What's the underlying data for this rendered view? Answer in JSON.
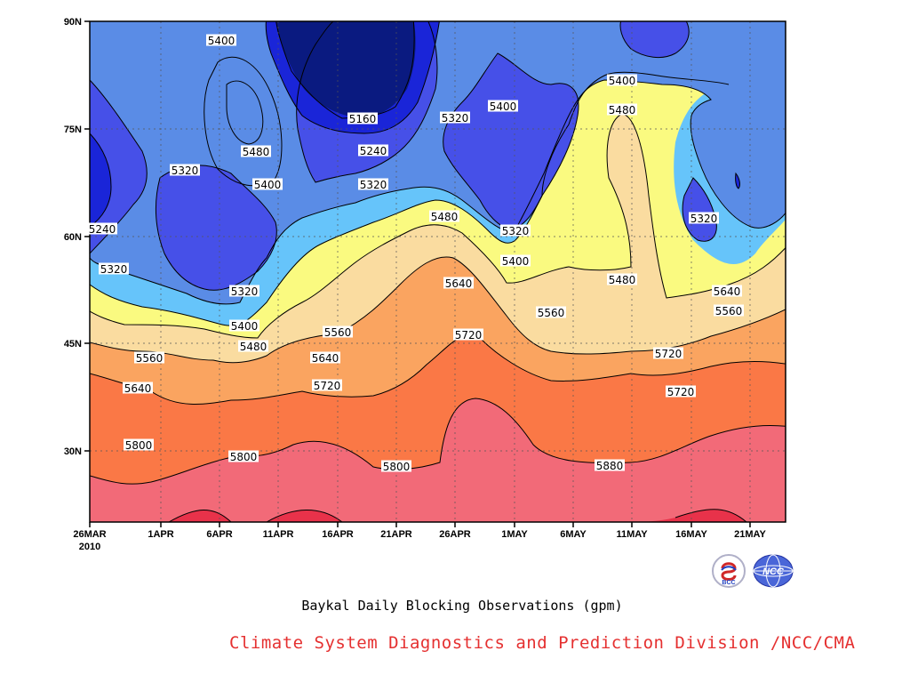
{
  "chart_data": {
    "type": "heatmap",
    "title": "Baykal Daily Blocking Observations (gpm)",
    "credit": "Climate System Diagnostics and Prediction Division /NCC/CMA",
    "x_axis": {
      "tick_labels": [
        "26MAR",
        "1APR",
        "6APR",
        "11APR",
        "16APR",
        "21APR",
        "26APR",
        "1MAY",
        "6MAY",
        "11MAY",
        "16MAY",
        "21MAY"
      ],
      "year_label": "2010",
      "range": [
        "2010-03-26",
        "2010-05-25"
      ]
    },
    "y_axis": {
      "tick_labels": [
        "90N",
        "75N",
        "60N",
        "45N",
        "30N"
      ],
      "range": [
        20,
        90
      ]
    },
    "contour_levels": [
      5160,
      5240,
      5320,
      5400,
      5480,
      5560,
      5640,
      5720,
      5800,
      5880
    ],
    "band_colors": [
      "#0a1a80",
      "#1a25d8",
      "#4650e8",
      "#5a8ce6",
      "#66c4fa",
      "#fafa80",
      "#fadca0",
      "#faa460",
      "#fa7846",
      "#f26a78",
      "#e8324a"
    ],
    "contour_labels": [
      "5400",
      "5160",
      "5320",
      "5400",
      "5400",
      "5480",
      "5240",
      "5320",
      "5400",
      "5320",
      "5480",
      "5240",
      "5480",
      "5320",
      "5320",
      "5320",
      "5400",
      "5320",
      "5560",
      "5640",
      "5400",
      "5480",
      "5560",
      "5480",
      "5560",
      "5720",
      "5640",
      "5560",
      "5640",
      "5640",
      "5720",
      "5720",
      "5720",
      "5800",
      "5800",
      "5800",
      "5880"
    ]
  },
  "logos": [
    "BCC",
    "NCC"
  ]
}
